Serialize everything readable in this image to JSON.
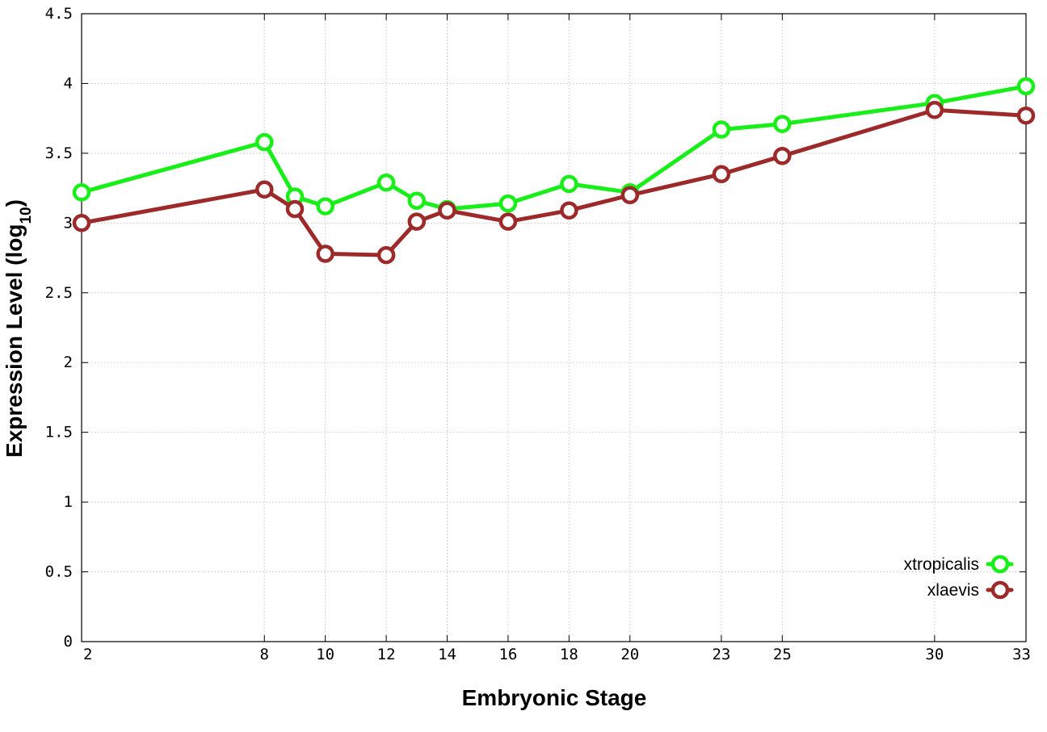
{
  "chart_data": {
    "type": "line",
    "title": "",
    "xlabel": "Embryonic Stage",
    "ylabel_main": "Expression Level (log",
    "ylabel_sub": "10",
    "ylabel_close": ")",
    "x": [
      2,
      8,
      9,
      10,
      12,
      13,
      14,
      16,
      18,
      20,
      23,
      25,
      30,
      33
    ],
    "xticks": [
      2,
      8,
      10,
      12,
      14,
      16,
      18,
      20,
      23,
      25,
      30,
      33
    ],
    "xlim": [
      2,
      33
    ],
    "ylim": [
      0,
      4.5
    ],
    "yticks": [
      0,
      0.5,
      1,
      1.5,
      2,
      2.5,
      3,
      3.5,
      4,
      4.5
    ],
    "ytick_labels": [
      "0",
      "0.5",
      "1",
      "1.5",
      "2",
      "2.5",
      "3",
      "3.5",
      "4",
      "4.5"
    ],
    "grid": true,
    "legend_position": "bottom-right",
    "series": [
      {
        "name": "xtropicalis",
        "color": "#18ee18",
        "values": [
          3.22,
          3.58,
          3.19,
          3.12,
          3.29,
          3.16,
          3.1,
          3.14,
          3.28,
          3.22,
          3.67,
          3.71,
          3.86,
          3.98
        ]
      },
      {
        "name": "xlaevis",
        "color": "#9c2a2a",
        "values": [
          3.0,
          3.24,
          3.1,
          2.78,
          2.77,
          3.01,
          3.09,
          3.01,
          3.09,
          3.2,
          3.35,
          3.48,
          3.81,
          3.77
        ]
      }
    ]
  }
}
